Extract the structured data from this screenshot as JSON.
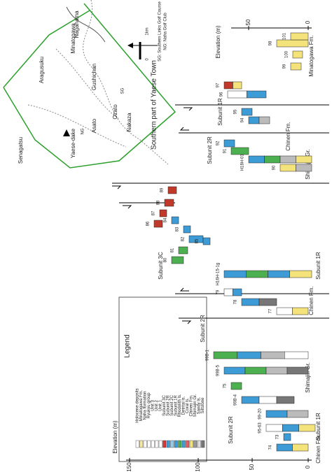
{
  "map": {
    "title": "Southern part of Yaese Town",
    "places": [
      "Senagatsu",
      "Yaese-dake",
      "Aragusuku",
      "Minatogawa",
      "Nagahama",
      "Gushichan",
      "Asato",
      "Nakaza",
      "Ozato"
    ],
    "scale": [
      "0",
      "1km"
    ],
    "codes": [
      "SG",
      "NG"
    ],
    "notes": [
      "SG: Southern Links Golf Course",
      "NG: Naha Golf Club"
    ]
  },
  "legend": {
    "title": "Legend",
    "rows": [
      "Holocene deposits",
      "Minatogawa Fm.",
      "Naha formation",
      "Ryukyu group",
      "Unit 3",
      "Unit 2",
      "Unit 1",
      "Subunit 3C",
      "Subunit 2R",
      "Subunit 2C",
      "Subunit 1R",
      "Rhodolith ls.",
      "Detrital ls.",
      "Coral ls.",
      "Chinen Fm.",
      "Shimajiri Gr.",
      "Sandy ls.",
      "Siltstone"
    ]
  },
  "axes": {
    "left": {
      "label": "Elevation (m)",
      "ticks": [
        "150",
        "100",
        "50",
        "0"
      ]
    },
    "right": {
      "label": "Elevation (m)",
      "ticks": [
        "50",
        "0"
      ]
    }
  },
  "units": [
    "Subunit 2R",
    "Subunit 1R",
    "Chinen Fm.",
    "Shimajiri Gr.",
    "Subunit 2R",
    "Subunit 1R",
    "Chinen Fm.",
    "Subunit 3C",
    "Subunit 2R",
    "Subunit 1R",
    "Chinen Fm.",
    "Shimajiri Gr.",
    "Minatogawa Fm."
  ],
  "columns": [
    "73",
    "74",
    "95-63",
    "99-20",
    "99B-4",
    "75",
    "99B-5",
    "99B-1",
    "77",
    "78",
    "79",
    "H16H-15-1g",
    "80",
    "81",
    "82",
    "83",
    "84",
    "85",
    "86",
    "87",
    "88",
    "89",
    "90",
    "H18H-01-1g",
    "91",
    "92",
    "94",
    "95",
    "96",
    "97",
    "98",
    "99",
    "100",
    "101"
  ]
}
